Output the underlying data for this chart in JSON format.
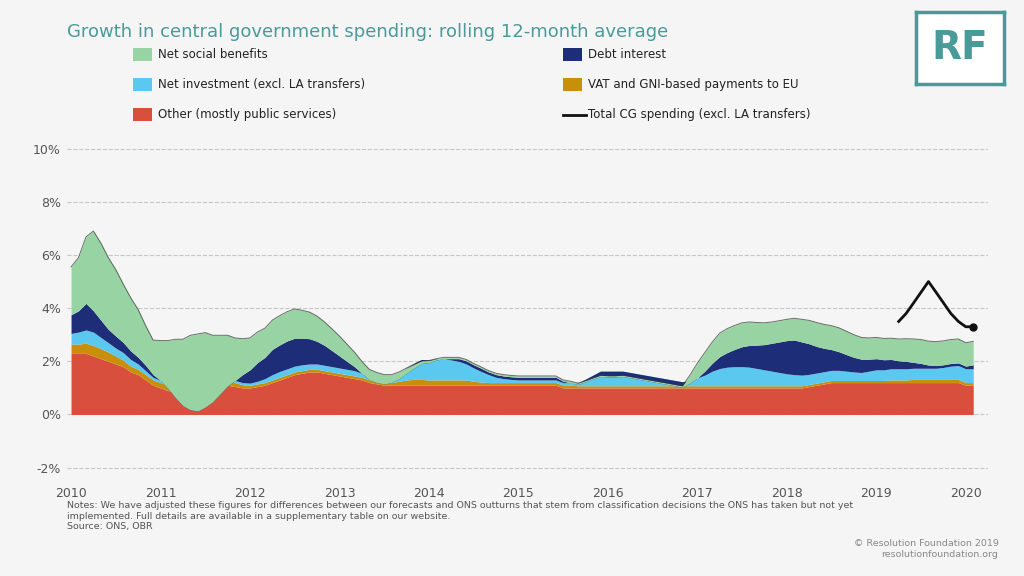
{
  "title": "Growth in central government spending: rolling 12-month average",
  "title_color": "#4a9a9a",
  "background_color": "#f5f5f5",
  "plot_bg_color": "#f5f5f5",
  "ylim": [
    -0.025,
    0.105
  ],
  "yticks": [
    -0.02,
    0.0,
    0.02,
    0.04,
    0.06,
    0.08,
    0.1
  ],
  "yticklabels": [
    "-2%",
    "0%",
    "2%",
    "4%",
    "6%",
    "8%",
    "10%"
  ],
  "xlim": [
    2009.95,
    2020.25
  ],
  "xticks": [
    2010,
    2011,
    2012,
    2013,
    2014,
    2015,
    2016,
    2017,
    2018,
    2019,
    2020
  ],
  "colors": {
    "net_social_benefits": "#98d4a3",
    "net_investment": "#5bc8ef",
    "other": "#d94f3d",
    "debt_interest": "#1e2d78",
    "vat_gni": "#c8900a",
    "total_line": "#111111"
  },
  "legend": {
    "net_social_benefits": "Net social benefits",
    "net_investment": "Net investment (excl. LA transfers)",
    "other": "Other (mostly public services)",
    "debt_interest": "Debt interest",
    "vat_gni": "VAT and GNI-based payments to EU",
    "total_line": "Total CG spending (excl. LA transfers)"
  },
  "note": "Notes: We have adjusted these figures for differences between our forecasts and ONS outturns that stem from classification decisions the ONS has taken but not yet\nimplemented. Full details are available in a supplementary table on our website.\nSource: ONS, OBR",
  "copyright": "© Resolution Foundation 2019\nresolutionfoundation.org",
  "rf_logo_color": "#4a9a9a",
  "grid_color": "#bbbbbb",
  "x": [
    2010.0,
    2010.083,
    2010.167,
    2010.25,
    2010.333,
    2010.417,
    2010.5,
    2010.583,
    2010.667,
    2010.75,
    2010.833,
    2010.917,
    2011.0,
    2011.083,
    2011.167,
    2011.25,
    2011.333,
    2011.417,
    2011.5,
    2011.583,
    2011.667,
    2011.75,
    2011.833,
    2011.917,
    2012.0,
    2012.083,
    2012.167,
    2012.25,
    2012.333,
    2012.417,
    2012.5,
    2012.583,
    2012.667,
    2012.75,
    2012.833,
    2012.917,
    2013.0,
    2013.083,
    2013.167,
    2013.25,
    2013.333,
    2013.417,
    2013.5,
    2013.583,
    2013.667,
    2013.75,
    2013.833,
    2013.917,
    2014.0,
    2014.083,
    2014.167,
    2014.25,
    2014.333,
    2014.417,
    2014.5,
    2014.583,
    2014.667,
    2014.75,
    2014.833,
    2014.917,
    2015.0,
    2015.083,
    2015.167,
    2015.25,
    2015.333,
    2015.417,
    2015.5,
    2015.583,
    2015.667,
    2015.75,
    2015.833,
    2015.917,
    2016.0,
    2016.083,
    2016.167,
    2016.25,
    2016.333,
    2016.417,
    2016.5,
    2016.583,
    2016.667,
    2016.75,
    2016.833,
    2016.917,
    2017.0,
    2017.083,
    2017.167,
    2017.25,
    2017.333,
    2017.417,
    2017.5,
    2017.583,
    2017.667,
    2017.75,
    2017.833,
    2017.917,
    2018.0,
    2018.083,
    2018.167,
    2018.25,
    2018.333,
    2018.417,
    2018.5,
    2018.583,
    2018.667,
    2018.75,
    2018.833,
    2018.917,
    2019.0,
    2019.083,
    2019.167,
    2019.25,
    2019.333,
    2019.417,
    2019.5,
    2019.583,
    2019.667,
    2019.75,
    2019.833,
    2019.917,
    2020.0,
    2020.083
  ],
  "other": [
    2.3,
    2.3,
    2.3,
    2.2,
    2.1,
    2.0,
    1.9,
    1.8,
    1.6,
    1.5,
    1.3,
    1.1,
    1.0,
    0.9,
    0.85,
    0.85,
    0.9,
    0.95,
    1.0,
    1.05,
    1.1,
    1.1,
    1.05,
    1.0,
    1.0,
    1.05,
    1.1,
    1.2,
    1.3,
    1.4,
    1.5,
    1.55,
    1.6,
    1.6,
    1.55,
    1.5,
    1.45,
    1.4,
    1.35,
    1.3,
    1.2,
    1.15,
    1.1,
    1.1,
    1.1,
    1.1,
    1.1,
    1.1,
    1.1,
    1.1,
    1.1,
    1.1,
    1.1,
    1.1,
    1.1,
    1.1,
    1.1,
    1.1,
    1.1,
    1.1,
    1.1,
    1.1,
    1.1,
    1.1,
    1.1,
    1.1,
    1.0,
    1.0,
    1.0,
    1.0,
    1.0,
    1.0,
    1.0,
    1.0,
    1.0,
    1.0,
    1.0,
    1.0,
    1.0,
    1.0,
    1.0,
    1.0,
    1.0,
    1.0,
    1.0,
    1.0,
    1.0,
    1.0,
    1.0,
    1.0,
    1.0,
    1.0,
    1.0,
    1.0,
    1.0,
    1.0,
    1.0,
    1.0,
    1.0,
    1.05,
    1.1,
    1.15,
    1.2,
    1.2,
    1.2,
    1.2,
    1.2,
    1.2,
    1.2,
    1.2,
    1.2,
    1.2,
    1.2,
    1.2,
    1.2,
    1.2,
    1.2,
    1.2,
    1.2,
    1.2,
    1.1,
    1.1
  ],
  "vat_gni": [
    0.35,
    0.35,
    0.38,
    0.4,
    0.38,
    0.35,
    0.3,
    0.25,
    0.22,
    0.2,
    0.2,
    0.2,
    0.2,
    0.2,
    0.2,
    0.2,
    0.2,
    0.2,
    0.2,
    0.2,
    0.2,
    0.2,
    0.15,
    0.12,
    0.1,
    0.1,
    0.1,
    0.1,
    0.1,
    0.1,
    0.1,
    0.1,
    0.1,
    0.1,
    0.1,
    0.1,
    0.1,
    0.1,
    0.1,
    0.1,
    0.1,
    0.1,
    0.1,
    0.1,
    0.15,
    0.2,
    0.22,
    0.22,
    0.2,
    0.2,
    0.2,
    0.2,
    0.2,
    0.2,
    0.15,
    0.12,
    0.1,
    0.1,
    0.1,
    0.1,
    0.1,
    0.1,
    0.1,
    0.1,
    0.1,
    0.1,
    0.1,
    0.1,
    0.08,
    0.08,
    0.08,
    0.08,
    0.08,
    0.08,
    0.08,
    0.08,
    0.08,
    0.08,
    0.08,
    0.08,
    0.08,
    0.08,
    0.08,
    0.08,
    0.08,
    0.08,
    0.08,
    0.08,
    0.08,
    0.08,
    0.08,
    0.08,
    0.08,
    0.08,
    0.08,
    0.08,
    0.08,
    0.08,
    0.08,
    0.08,
    0.08,
    0.08,
    0.08,
    0.08,
    0.08,
    0.08,
    0.08,
    0.08,
    0.08,
    0.08,
    0.1,
    0.1,
    0.1,
    0.12,
    0.12,
    0.12,
    0.12,
    0.12,
    0.12,
    0.12,
    0.1,
    0.1
  ],
  "net_investment": [
    0.4,
    0.45,
    0.5,
    0.5,
    0.42,
    0.35,
    0.3,
    0.28,
    0.25,
    0.2,
    0.15,
    0.1,
    0.08,
    0.08,
    0.08,
    0.08,
    0.08,
    0.08,
    0.08,
    0.08,
    0.08,
    0.08,
    0.08,
    0.08,
    0.08,
    0.1,
    0.15,
    0.2,
    0.22,
    0.22,
    0.22,
    0.22,
    0.2,
    0.2,
    0.2,
    0.2,
    0.2,
    0.2,
    0.2,
    0.15,
    0.1,
    0.1,
    0.15,
    0.2,
    0.3,
    0.45,
    0.6,
    0.75,
    0.75,
    0.8,
    0.8,
    0.75,
    0.7,
    0.6,
    0.5,
    0.4,
    0.3,
    0.2,
    0.15,
    0.12,
    0.1,
    0.1,
    0.1,
    0.1,
    0.1,
    0.1,
    0.1,
    0.1,
    0.1,
    0.25,
    0.4,
    0.55,
    0.55,
    0.55,
    0.55,
    0.5,
    0.45,
    0.4,
    0.35,
    0.3,
    0.25,
    0.2,
    0.15,
    0.2,
    0.3,
    0.4,
    0.55,
    0.65,
    0.7,
    0.72,
    0.72,
    0.7,
    0.65,
    0.6,
    0.55,
    0.5,
    0.45,
    0.42,
    0.4,
    0.38,
    0.38,
    0.38,
    0.38,
    0.38,
    0.35,
    0.32,
    0.3,
    0.35,
    0.4,
    0.4,
    0.42,
    0.42,
    0.42,
    0.42,
    0.42,
    0.42,
    0.42,
    0.45,
    0.5,
    0.52,
    0.52,
    0.52
  ],
  "debt_interest": [
    0.7,
    0.8,
    1.0,
    0.8,
    0.65,
    0.5,
    0.45,
    0.38,
    0.32,
    0.25,
    0.2,
    0.1,
    0.0,
    -0.2,
    -0.5,
    -0.8,
    -1.0,
    -1.1,
    -1.0,
    -0.85,
    -0.6,
    -0.3,
    0.0,
    0.3,
    0.5,
    0.7,
    0.8,
    0.95,
    1.0,
    1.05,
    1.05,
    1.0,
    0.95,
    0.85,
    0.75,
    0.6,
    0.45,
    0.3,
    0.15,
    0.0,
    -0.1,
    -0.15,
    -0.2,
    -0.2,
    -0.2,
    -0.2,
    -0.18,
    -0.15,
    -0.1,
    -0.05,
    0.0,
    0.05,
    0.1,
    0.12,
    0.12,
    0.12,
    0.1,
    0.1,
    0.1,
    0.1,
    0.1,
    0.1,
    0.1,
    0.1,
    0.1,
    0.1,
    0.05,
    0.0,
    -0.05,
    -0.1,
    -0.15,
    -0.2,
    -0.22,
    -0.22,
    -0.2,
    -0.2,
    -0.2,
    -0.2,
    -0.2,
    -0.2,
    -0.2,
    -0.2,
    -0.2,
    -0.1,
    0.0,
    0.15,
    0.3,
    0.45,
    0.55,
    0.65,
    0.75,
    0.82,
    0.88,
    0.95,
    1.05,
    1.15,
    1.25,
    1.3,
    1.25,
    1.15,
    1.0,
    0.88,
    0.78,
    0.7,
    0.62,
    0.55,
    0.5,
    0.45,
    0.42,
    0.38,
    0.35,
    0.3,
    0.28,
    0.22,
    0.18,
    0.12,
    0.1,
    0.1,
    0.1,
    0.1,
    0.1,
    0.15
  ],
  "net_social_benefits": [
    1.8,
    2.0,
    2.5,
    3.0,
    2.9,
    2.7,
    2.5,
    2.2,
    2.0,
    1.8,
    1.5,
    1.3,
    1.5,
    1.8,
    2.2,
    2.5,
    2.8,
    2.9,
    2.8,
    2.5,
    2.2,
    1.9,
    1.6,
    1.35,
    1.2,
    1.15,
    1.1,
    1.1,
    1.1,
    1.1,
    1.1,
    1.05,
    1.0,
    0.95,
    0.88,
    0.82,
    0.75,
    0.65,
    0.55,
    0.45,
    0.4,
    0.38,
    0.35,
    0.3,
    0.25,
    0.2,
    0.15,
    0.1,
    0.08,
    0.05,
    0.05,
    0.05,
    0.05,
    0.05,
    0.05,
    0.05,
    0.05,
    0.05,
    0.05,
    0.05,
    0.05,
    0.05,
    0.05,
    0.05,
    0.05,
    0.05,
    0.05,
    0.05,
    0.05,
    0.05,
    0.05,
    0.05,
    0.05,
    0.05,
    0.05,
    0.05,
    0.05,
    0.05,
    0.05,
    0.05,
    0.05,
    0.05,
    0.05,
    0.3,
    0.55,
    0.7,
    0.8,
    0.88,
    0.9,
    0.9,
    0.9,
    0.88,
    0.85,
    0.82,
    0.8,
    0.8,
    0.8,
    0.82,
    0.85,
    0.88,
    0.9,
    0.9,
    0.9,
    0.9,
    0.88,
    0.85,
    0.82,
    0.8,
    0.8,
    0.8,
    0.8,
    0.82,
    0.85,
    0.88,
    0.9,
    0.9,
    0.9,
    0.9,
    0.9,
    0.9,
    0.88,
    0.88
  ],
  "total_line_x": [
    2019.25,
    2019.333,
    2019.417,
    2019.5,
    2019.583,
    2019.667,
    2019.75,
    2019.833,
    2019.917,
    2020.0,
    2020.083
  ],
  "total_line_y": [
    3.5,
    3.8,
    4.2,
    4.6,
    5.0,
    4.6,
    4.2,
    3.8,
    3.5,
    3.3,
    3.3
  ]
}
